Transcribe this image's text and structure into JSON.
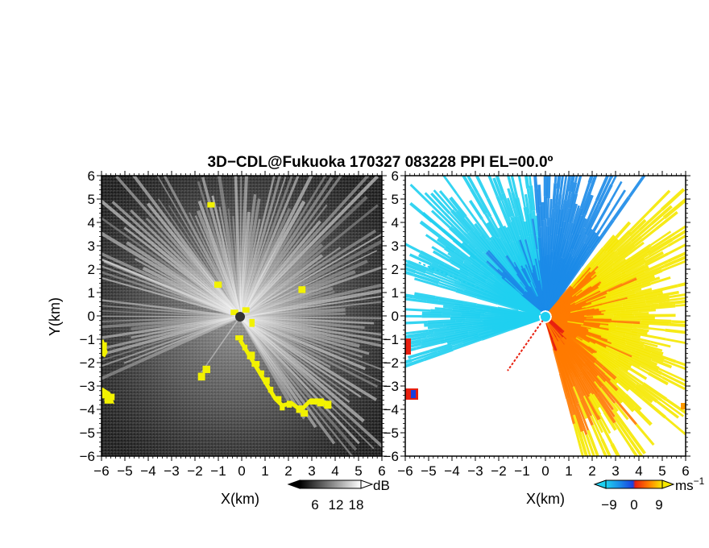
{
  "title": "3D−CDL@Fukuoka 170327 083228 PPI EL=00.0º",
  "chart_data": [
    {
      "type": "heatmap",
      "panel": "backscatter-intensity",
      "xlabel": "X(km)",
      "ylabel": "Y(km)",
      "xlim": [
        -6,
        6
      ],
      "ylim": [
        -6,
        6
      ],
      "xticks": [
        "−6",
        "−5",
        "−4",
        "−3",
        "−2",
        "−1",
        "0",
        "1",
        "2",
        "3",
        "4",
        "5",
        "6"
      ],
      "yticks": [
        "6",
        "5",
        "4",
        "3",
        "2",
        "1",
        "0",
        "−1",
        "−2",
        "−3",
        "−4",
        "−5",
        "−6"
      ],
      "colorbar": {
        "unit": "dB",
        "ticks": [
          "6",
          "12",
          "18"
        ],
        "colors": [
          "#000000",
          "#ffffff"
        ]
      },
      "highlight_color": "#f2f200",
      "highlight_points": [
        [
          -6.0,
          -1.5
        ],
        [
          -5.9,
          -1.2
        ],
        [
          -5.8,
          -3.3
        ],
        [
          -5.7,
          -3.6
        ],
        [
          -5.6,
          -3.4
        ],
        [
          -1.0,
          1.4
        ],
        [
          -1.5,
          -2.2
        ],
        [
          -1.7,
          -2.5
        ],
        [
          -0.3,
          0.2
        ],
        [
          0.2,
          0.3
        ],
        [
          0.5,
          -0.2
        ],
        [
          -0.1,
          -0.9
        ],
        [
          0.2,
          -1.3
        ],
        [
          0.4,
          -1.6
        ],
        [
          0.6,
          -2.0
        ],
        [
          0.9,
          -2.4
        ],
        [
          1.1,
          -2.7
        ],
        [
          1.3,
          -3.1
        ],
        [
          1.6,
          -3.5
        ],
        [
          1.8,
          -3.9
        ],
        [
          2.1,
          -3.7
        ],
        [
          2.5,
          -3.9
        ],
        [
          2.7,
          -4.1
        ],
        [
          3.1,
          -3.6
        ],
        [
          3.4,
          -3.6
        ],
        [
          3.7,
          -3.7
        ],
        [
          2.6,
          1.2
        ],
        [
          -1.3,
          4.8
        ]
      ]
    },
    {
      "type": "heatmap",
      "panel": "radial-velocity",
      "xlabel": "X(km)",
      "ylabel": "",
      "xlim": [
        -6,
        6
      ],
      "ylim": [
        -6,
        6
      ],
      "xticks": [
        "−6",
        "−5",
        "−4",
        "−3",
        "−2",
        "−1",
        "0",
        "1",
        "2",
        "3",
        "4",
        "5",
        "6"
      ],
      "yticks": [
        "6",
        "5",
        "4",
        "3",
        "2",
        "1",
        "0",
        "−1",
        "−2",
        "−3",
        "−4",
        "−5",
        "−6"
      ],
      "colorbar": {
        "unit": "ms",
        "unit_superscript": "−1",
        "ticks": [
          "−9",
          "0",
          "9"
        ],
        "range": [
          -9,
          9
        ],
        "colors": [
          "#1fd0f0",
          "#1a8ae8",
          "#1a40e0",
          "#e82010",
          "#ff7a00",
          "#f6e800"
        ]
      },
      "velocity_sectors": [
        {
          "direction": "north",
          "from_deg": 95,
          "to_deg": 140,
          "value": -6
        },
        {
          "direction": "north-northeast",
          "from_deg": 55,
          "to_deg": 95,
          "value": -4
        },
        {
          "direction": "northwest",
          "from_deg": 140,
          "to_deg": 165,
          "value": -8
        },
        {
          "direction": "west",
          "from_deg": 170,
          "to_deg": 200,
          "value": -8
        },
        {
          "direction": "east",
          "from_deg": -40,
          "to_deg": 50,
          "value": 5
        },
        {
          "direction": "southeast",
          "from_deg": -75,
          "to_deg": -40,
          "value": 3
        }
      ]
    }
  ]
}
